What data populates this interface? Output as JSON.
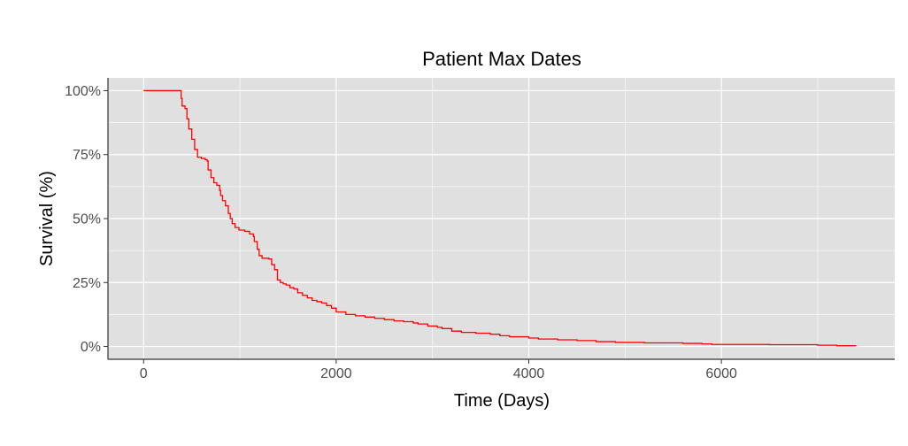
{
  "chart_data": {
    "type": "line",
    "title": "Patient Max Dates",
    "xlabel": "Time (Days)",
    "ylabel": "Survival (%)",
    "xlim": [
      -370,
      7800
    ],
    "ylim": [
      -5,
      105
    ],
    "x_ticks": [
      0,
      2000,
      4000,
      6000
    ],
    "x_tick_labels": [
      "0",
      "2000",
      "4000",
      "6000"
    ],
    "x_minor": [
      1000,
      3000,
      5000,
      7000
    ],
    "y_ticks": [
      0,
      25,
      50,
      75,
      100
    ],
    "y_tick_labels": [
      "0%",
      "25%",
      "50%",
      "75%",
      "100%"
    ],
    "y_minor": [
      12.5,
      37.5,
      62.5,
      87.5
    ],
    "grid": true,
    "legend": "none",
    "colors": {
      "panel": "#e0e0e0",
      "grid": "#ffffff",
      "line": "#ff0000",
      "axis": "#333333"
    },
    "series": [
      {
        "step": true,
        "points": [
          [
            0,
            100
          ],
          [
            370,
            100
          ],
          [
            390,
            97
          ],
          [
            400,
            94
          ],
          [
            430,
            93
          ],
          [
            450,
            89
          ],
          [
            470,
            85
          ],
          [
            500,
            81
          ],
          [
            530,
            77
          ],
          [
            560,
            74
          ],
          [
            600,
            73.5
          ],
          [
            640,
            73
          ],
          [
            660,
            72.5
          ],
          [
            670,
            69
          ],
          [
            700,
            66
          ],
          [
            730,
            64
          ],
          [
            760,
            63
          ],
          [
            790,
            61
          ],
          [
            800,
            59
          ],
          [
            820,
            57
          ],
          [
            850,
            55
          ],
          [
            880,
            52
          ],
          [
            900,
            50
          ],
          [
            920,
            48
          ],
          [
            950,
            46.5
          ],
          [
            990,
            45.5
          ],
          [
            1050,
            45
          ],
          [
            1100,
            44
          ],
          [
            1140,
            43
          ],
          [
            1150,
            41
          ],
          [
            1180,
            38
          ],
          [
            1200,
            35.5
          ],
          [
            1230,
            34.5
          ],
          [
            1300,
            34.2
          ],
          [
            1330,
            32
          ],
          [
            1360,
            30
          ],
          [
            1390,
            26
          ],
          [
            1420,
            25
          ],
          [
            1450,
            24.5
          ],
          [
            1480,
            24
          ],
          [
            1520,
            23
          ],
          [
            1560,
            22.5
          ],
          [
            1600,
            21
          ],
          [
            1650,
            20
          ],
          [
            1700,
            19
          ],
          [
            1750,
            18
          ],
          [
            1800,
            17.5
          ],
          [
            1850,
            17
          ],
          [
            1900,
            16
          ],
          [
            1950,
            15
          ],
          [
            2000,
            13.5
          ],
          [
            2100,
            12.5
          ],
          [
            2200,
            12
          ],
          [
            2300,
            11.5
          ],
          [
            2400,
            11
          ],
          [
            2500,
            10.5
          ],
          [
            2600,
            10
          ],
          [
            2700,
            9.7
          ],
          [
            2800,
            9.2
          ],
          [
            2850,
            8.8
          ],
          [
            2950,
            8
          ],
          [
            3050,
            7.5
          ],
          [
            3100,
            7
          ],
          [
            3200,
            6
          ],
          [
            3300,
            5.5
          ],
          [
            3450,
            5.2
          ],
          [
            3600,
            4.8
          ],
          [
            3700,
            4.2
          ],
          [
            3800,
            3.8
          ],
          [
            4000,
            3.3
          ],
          [
            4100,
            2.9
          ],
          [
            4300,
            2.6
          ],
          [
            4500,
            2.3
          ],
          [
            4700,
            1.9
          ],
          [
            4900,
            1.6
          ],
          [
            5200,
            1.4
          ],
          [
            5600,
            1.2
          ],
          [
            5800,
            1.0
          ],
          [
            5900,
            0.8
          ],
          [
            6500,
            0.7
          ],
          [
            7000,
            0.5
          ],
          [
            7200,
            0.3
          ],
          [
            7400,
            0.3
          ]
        ]
      }
    ]
  }
}
